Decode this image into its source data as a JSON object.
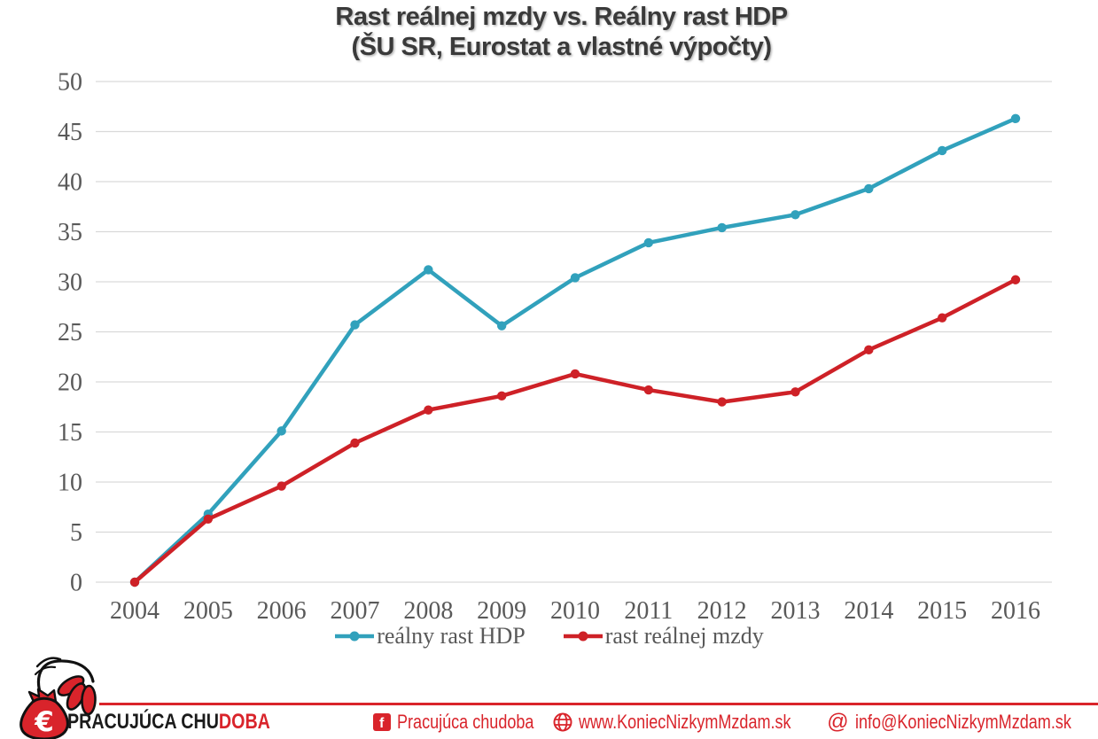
{
  "title": {
    "line1": "Rast reálnej mzdy vs. Reálny rast HDP",
    "line2": "(ŠU SR, Eurostat a vlastné výpočty)"
  },
  "chart_data": {
    "type": "line",
    "x": [
      2004,
      2005,
      2006,
      2007,
      2008,
      2009,
      2010,
      2011,
      2012,
      2013,
      2014,
      2015,
      2016
    ],
    "series": [
      {
        "name": "reálny rast HDP",
        "color": "#31a1bc",
        "values": [
          0,
          6.8,
          15.1,
          25.7,
          31.2,
          25.6,
          30.4,
          33.9,
          35.4,
          36.7,
          39.3,
          43.1,
          46.3
        ]
      },
      {
        "name": "rast reálnej mzdy",
        "color": "#ce2127",
        "values": [
          0,
          6.3,
          9.6,
          13.9,
          17.2,
          18.6,
          20.8,
          19.2,
          18.0,
          19.0,
          23.2,
          26.4,
          30.2
        ]
      }
    ],
    "title": "Rast reálnej mzdy vs. Reálny rast HDP (ŠU SR, Eurostat a vlastné výpočty)",
    "xlabel": "",
    "ylabel": "",
    "ylim": [
      0,
      50
    ],
    "ytick_step": 5,
    "grid": "horizontal",
    "gridline_color": "#d9d9d9",
    "legend_position": "bottom",
    "marker": "dot"
  },
  "footer": {
    "brand": {
      "euro_symbol": "€",
      "name_black": "PRACUJÚCA CHU",
      "name_red": "DOBA"
    },
    "accent_color": "#d9242b",
    "contacts": [
      {
        "icon": "facebook-icon",
        "label": "Pracujúca chudoba"
      },
      {
        "icon": "globe-icon",
        "label": "www.KoniecNizkymMzdam.sk"
      },
      {
        "icon": "at-icon",
        "label": "info@KoniecNizkymMzdam.sk"
      }
    ]
  },
  "colors": {
    "title_text": "#3a3a3a",
    "axis_text": "#595959",
    "gridline": "#d9d9d9",
    "series_hdp": "#31a1bc",
    "series_mzdy": "#ce2127",
    "footer_red": "#d9242b"
  }
}
